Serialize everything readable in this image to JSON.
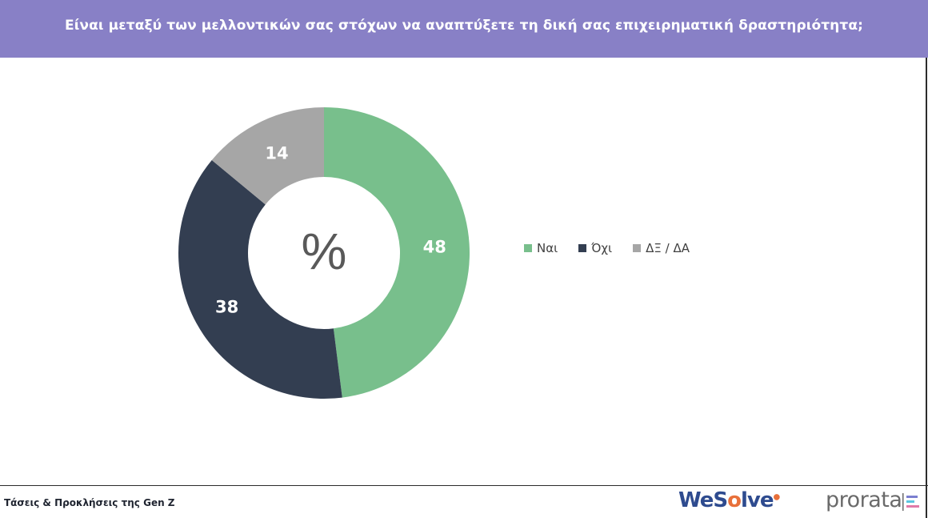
{
  "header": {
    "title": "Είναι μεταξύ των μελλοντικών σας στόχων να αναπτύξετε τη δική σας επιχειρηματική δραστηριότητα;"
  },
  "chart_data": {
    "type": "pie",
    "donut": true,
    "center_label": "%",
    "categories": [
      "Ναι",
      "Όχι",
      "ΔΞ / ΔΑ"
    ],
    "values": [
      48,
      38,
      14
    ],
    "colors": [
      "#78bf8c",
      "#333e51",
      "#a6a6a6"
    ],
    "legend_position": "right",
    "start_angle": "top",
    "direction": "clockwise"
  },
  "footer": {
    "text": "Τάσεις & Προκλήσεις της Gen Z",
    "logo_wesolve": {
      "part1": "We",
      "part2": "S",
      "part3": "o",
      "part4": "lve"
    },
    "logo_prorata": "prorata"
  }
}
